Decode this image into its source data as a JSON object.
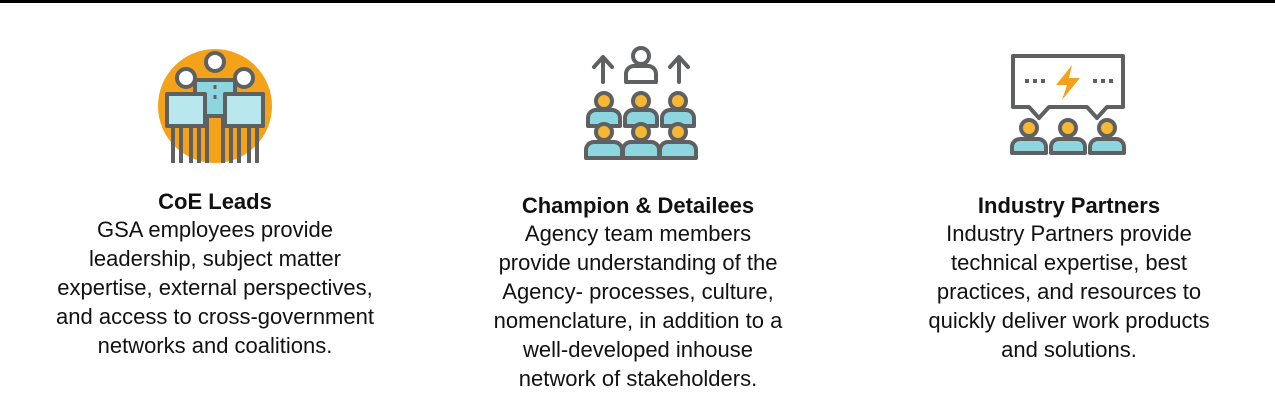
{
  "colors": {
    "orange": "#F5A21B",
    "teal": "#8ED6DF",
    "outline": "#5E6062",
    "skin": "#F7B733"
  },
  "columns": [
    {
      "icon": "team-leads-icon",
      "title": "CoE Leads",
      "lines": [
        "GSA employees provide",
        "leadership, subject matter",
        "expertise, external perspectives,",
        "and access to cross-government",
        "networks and coalitions."
      ]
    },
    {
      "icon": "group-champion-icon",
      "title": "Champion & Detailees",
      "lines": [
        "Agency team members",
        "provide understanding of the",
        "Agency- processes, culture,",
        "nomenclature, in addition to a",
        "well-developed inhouse",
        "network of stakeholders."
      ]
    },
    {
      "icon": "industry-partners-icon",
      "title": "Industry Partners",
      "lines": [
        "Industry Partners provide",
        "technical expertise, best",
        "practices, and resources to",
        "quickly deliver work products",
        "and solutions."
      ]
    }
  ]
}
